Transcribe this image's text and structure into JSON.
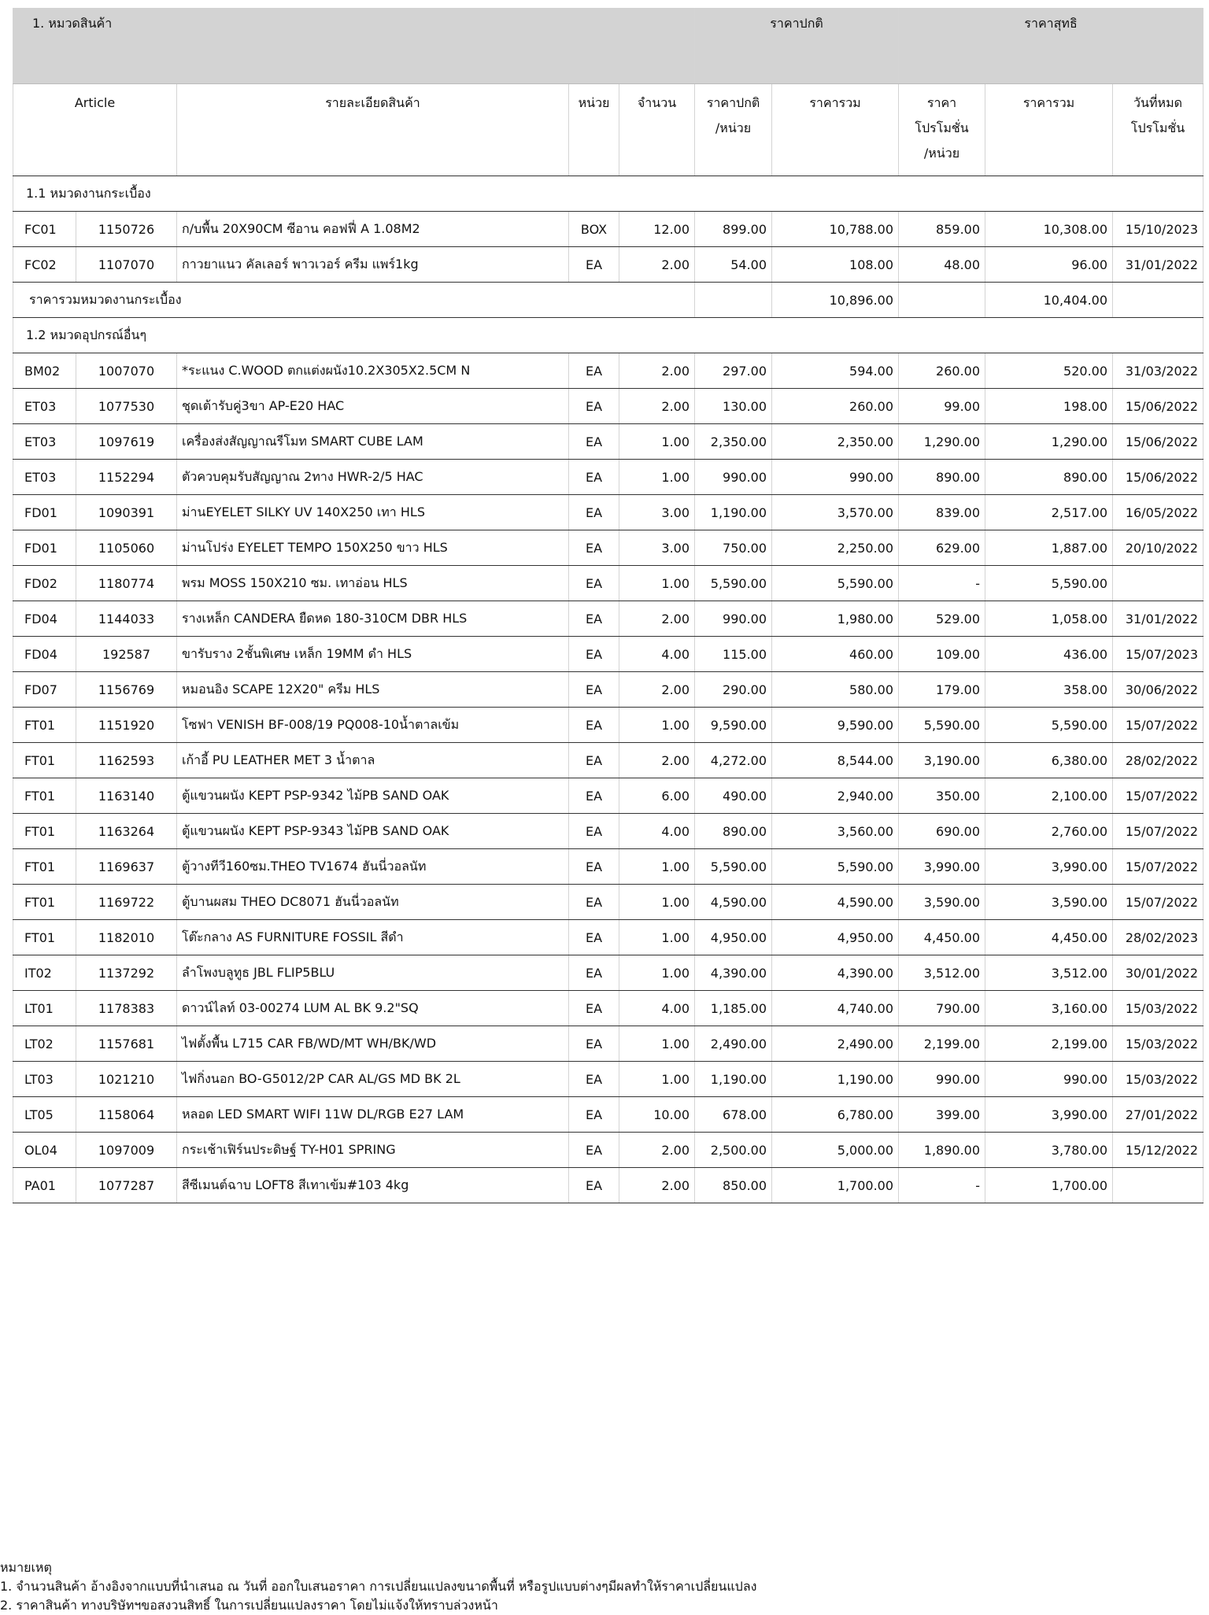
{
  "header": {
    "section": "1. หมวดสินค้า",
    "regular_price": "ราคาปกติ",
    "net_price": "ราคาสุทธิ"
  },
  "columns": [
    "Article",
    "รายละเอียดสินค้า",
    "หน่วย",
    "จำนวน",
    "ราคาปกติ\n/หน่วย",
    "ราคารวม",
    "ราคา\nโปรโมชั่น\n/หน่วย",
    "ราคารวม",
    "วันที่หมด\nโปรโมชั่น"
  ],
  "groups": [
    {
      "title": "1.1 หมวดงานกระเบื้อง",
      "rows": [
        [
          "FC01",
          "1150726",
          "ก/บพื้น 20X90CM ซีอาน คอฟฟี่ A 1.08M2",
          "BOX",
          "12.00",
          "899.00",
          "10,788.00",
          "859.00",
          "10,308.00",
          "15/10/2023"
        ],
        [
          "FC02",
          "1107070",
          "กาวยาแนว คัลเลอร์ พาวเวอร์ ครีม แพร์1kg",
          "EA",
          "2.00",
          "54.00",
          "108.00",
          "48.00",
          "96.00",
          "31/01/2022"
        ]
      ],
      "subtotal": {
        "label": "ราคารวมหมวดงานกระเบื้อง",
        "regular_total": "10,896.00",
        "net_total": "10,404.00"
      }
    },
    {
      "title": "1.2 หมวดอุปกรณ์อื่นๆ",
      "rows": [
        [
          "BM02",
          "1007070",
          "*ระแนง C.WOOD ตกแต่งผนัง10.2X305X2.5CM N",
          "EA",
          "2.00",
          "297.00",
          "594.00",
          "260.00",
          "520.00",
          "31/03/2022"
        ],
        [
          "ET03",
          "1077530",
          "ชุดเต้ารับคู่3ขา AP-E20 HAC",
          "EA",
          "2.00",
          "130.00",
          "260.00",
          "99.00",
          "198.00",
          "15/06/2022"
        ],
        [
          "ET03",
          "1097619",
          "เครื่องส่งสัญญาณรีโมท SMART CUBE LAM",
          "EA",
          "1.00",
          "2,350.00",
          "2,350.00",
          "1,290.00",
          "1,290.00",
          "15/06/2022"
        ],
        [
          "ET03",
          "1152294",
          "ตัวควบคุมรับสัญญาณ 2ทาง HWR-2/5 HAC",
          "EA",
          "1.00",
          "990.00",
          "990.00",
          "890.00",
          "890.00",
          "15/06/2022"
        ],
        [
          "FD01",
          "1090391",
          "ม่านEYELET SILKY UV 140X250 เทา HLS",
          "EA",
          "3.00",
          "1,190.00",
          "3,570.00",
          "839.00",
          "2,517.00",
          "16/05/2022"
        ],
        [
          "FD01",
          "1105060",
          "ม่านโปร่ง EYELET TEMPO 150X250 ขาว HLS",
          "EA",
          "3.00",
          "750.00",
          "2,250.00",
          "629.00",
          "1,887.00",
          "20/10/2022"
        ],
        [
          "FD02",
          "1180774",
          "พรม MOSS 150X210 ซม. เทาอ่อน HLS",
          "EA",
          "1.00",
          "5,590.00",
          "5,590.00",
          "-",
          "5,590.00",
          null
        ],
        [
          "FD04",
          "1144033",
          "รางเหล็ก CANDERA ยืดหด 180-310CM DBR HLS",
          "EA",
          "2.00",
          "990.00",
          "1,980.00",
          "529.00",
          "1,058.00",
          "31/01/2022"
        ],
        [
          "FD04",
          "192587",
          "ขารับราง 2ชั้นพิเศษ เหล็ก 19MM ดำ HLS",
          "EA",
          "4.00",
          "115.00",
          "460.00",
          "109.00",
          "436.00",
          "15/07/2023"
        ],
        [
          "FD07",
          "1156769",
          "หมอนอิง SCAPE 12X20\" ครีม HLS",
          "EA",
          "2.00",
          "290.00",
          "580.00",
          "179.00",
          "358.00",
          "30/06/2022"
        ],
        [
          "FT01",
          "1151920",
          "โซฟา VENISH BF-008/19 PQ008-10น้ำตาลเข้ม",
          "EA",
          "1.00",
          "9,590.00",
          "9,590.00",
          "5,590.00",
          "5,590.00",
          "15/07/2022"
        ],
        [
          "FT01",
          "1162593",
          "เก้าอี้ PU LEATHER MET 3 น้ำตาล",
          "EA",
          "2.00",
          "4,272.00",
          "8,544.00",
          "3,190.00",
          "6,380.00",
          "28/02/2022"
        ],
        [
          "FT01",
          "1163140",
          "ตู้แขวนผนัง KEPT PSP-9342 ไม้PB SAND OAK",
          "EA",
          "6.00",
          "490.00",
          "2,940.00",
          "350.00",
          "2,100.00",
          "15/07/2022"
        ],
        [
          "FT01",
          "1163264",
          "ตู้แขวนผนัง KEPT PSP-9343 ไม้PB SAND OAK",
          "EA",
          "4.00",
          "890.00",
          "3,560.00",
          "690.00",
          "2,760.00",
          "15/07/2022"
        ],
        [
          "FT01",
          "1169637",
          "ตู้วางทีวี160ซม.THEO TV1674 ฮันนี่วอลนัท",
          "EA",
          "1.00",
          "5,590.00",
          "5,590.00",
          "3,990.00",
          "3,990.00",
          "15/07/2022"
        ],
        [
          "FT01",
          "1169722",
          "ตู้บานผสม THEO DC8071 ฮันนี่วอลนัท",
          "EA",
          "1.00",
          "4,590.00",
          "4,590.00",
          "3,590.00",
          "3,590.00",
          "15/07/2022"
        ],
        [
          "FT01",
          "1182010",
          "โต๊ะกลาง AS FURNITURE FOSSIL สีดำ",
          "EA",
          "1.00",
          "4,950.00",
          "4,950.00",
          "4,450.00",
          "4,450.00",
          "28/02/2023"
        ],
        [
          "IT02",
          "1137292",
          "ลำโพงบลูทูธ JBL FLIP5BLU",
          "EA",
          "1.00",
          "4,390.00",
          "4,390.00",
          "3,512.00",
          "3,512.00",
          "30/01/2022"
        ],
        [
          "LT01",
          "1178383",
          "ดาวน์ไลท์ 03-00274 LUM AL BK 9.2\"SQ",
          "EA",
          "4.00",
          "1,185.00",
          "4,740.00",
          "790.00",
          "3,160.00",
          "15/03/2022"
        ],
        [
          "LT02",
          "1157681",
          "ไฟตั้งพื้น  L715 CAR FB/WD/MT WH/BK/WD",
          "EA",
          "1.00",
          "2,490.00",
          "2,490.00",
          "2,199.00",
          "2,199.00",
          "15/03/2022"
        ],
        [
          "LT03",
          "1021210",
          "ไฟกิ่งนอก BO-G5012/2P CAR AL/GS MD BK 2L",
          "EA",
          "1.00",
          "1,190.00",
          "1,190.00",
          "990.00",
          "990.00",
          "15/03/2022"
        ],
        [
          "LT05",
          "1158064",
          "หลอด LED SMART WIFI 11W DL/RGB E27 LAM",
          "EA",
          "10.00",
          "678.00",
          "6,780.00",
          "399.00",
          "3,990.00",
          "27/01/2022"
        ],
        [
          "OL04",
          "1097009",
          "กระเช้าเฟิร์นประดิษฐ์ TY-H01 SPRING",
          "EA",
          "2.00",
          "2,500.00",
          "5,000.00",
          "1,890.00",
          "3,780.00",
          "15/12/2022"
        ],
        [
          "PA01",
          "1077287",
          "สีซีเมนต์ฉาบ LOFT8 สีเทาเข้ม#103 4kg",
          "EA",
          "2.00",
          "850.00",
          "1,700.00",
          "-",
          "1,700.00",
          null
        ]
      ]
    }
  ],
  "notes": {
    "title": "หมายเหตุ",
    "items": [
      "1. จำนวนสินค้า อ้างอิงจากแบบที่นำเสนอ ณ วันที่ ออกใบเสนอราคา การเปลี่ยนแปลงขนาดพื้นที่ หรือรูปแบบต่างๆมีผลทำให้ราคาเปลี่ยนแปลง",
      "2. ราคาสินค้า ทางบริษัทฯขอสงวนสิทธิ์ ในการเปลี่ยนแปลงราคา โดยไม่แจ้งให้ทราบล่วงหน้า"
    ]
  }
}
